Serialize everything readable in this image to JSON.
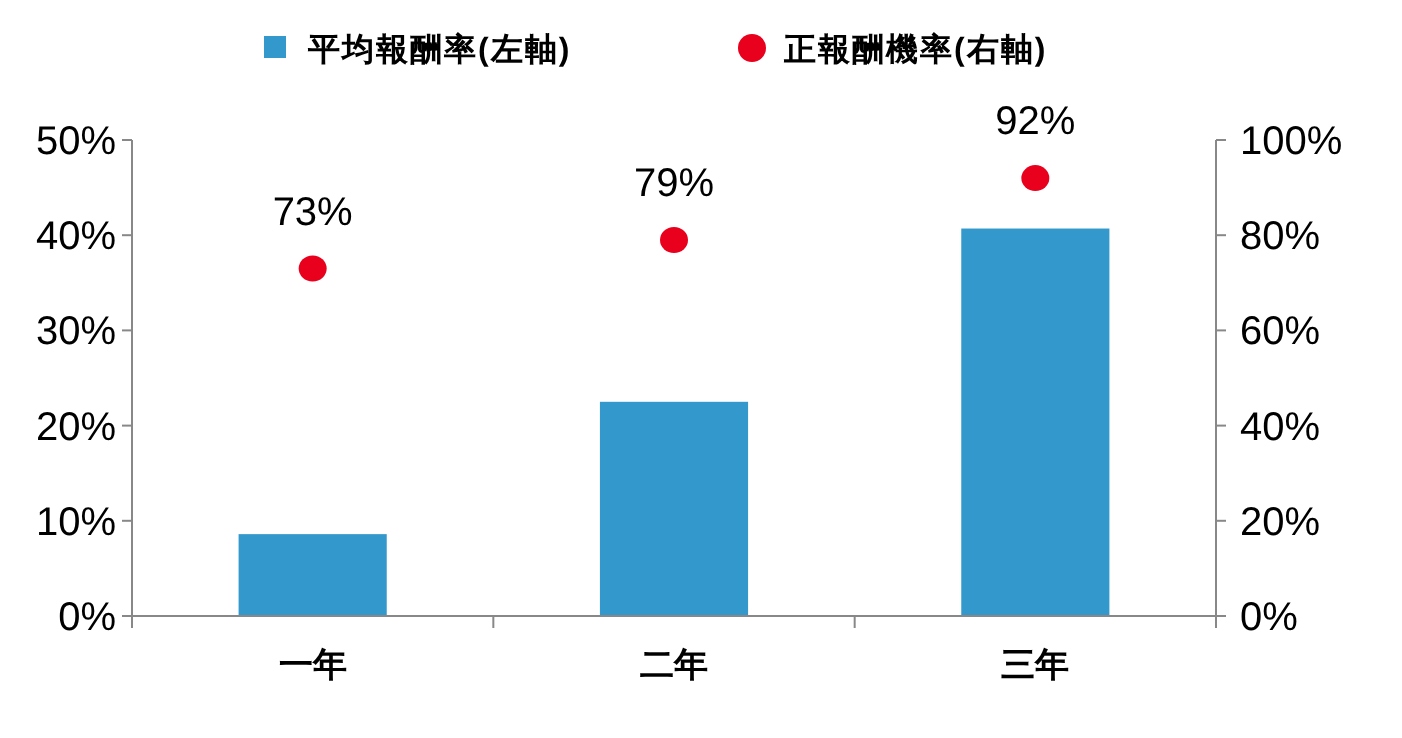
{
  "chart_data": {
    "type": "bar",
    "categories": [
      "一年",
      "二年",
      "三年"
    ],
    "series": [
      {
        "name": "平均報酬率(左軸)",
        "color": "#3399cc",
        "values": [
          8.6,
          22.5,
          40.7
        ]
      },
      {
        "name": "正報酬機率(右軸)",
        "type": "scatter",
        "axis": "y2",
        "color": "#e8001c",
        "values": [
          73,
          79,
          92
        ],
        "value_labels": [
          "73%",
          "79%",
          "92%"
        ]
      }
    ],
    "ylim": [
      0,
      50
    ],
    "yticks": [
      {
        "value": 0,
        "label": "0%"
      },
      {
        "value": 10,
        "label": "10%"
      },
      {
        "value": 20,
        "label": "20%"
      },
      {
        "value": 30,
        "label": "30%"
      },
      {
        "value": 40,
        "label": "40%"
      },
      {
        "value": 50,
        "label": "50%"
      }
    ],
    "y2lim": [
      0,
      100
    ],
    "y2ticks": [
      {
        "value": 0,
        "label": "0%"
      },
      {
        "value": 20,
        "label": "20%"
      },
      {
        "value": 40,
        "label": "40%"
      },
      {
        "value": 60,
        "label": "60%"
      },
      {
        "value": 80,
        "label": "80%"
      },
      {
        "value": 100,
        "label": "100%"
      }
    ],
    "marker": "circle",
    "legend": "top",
    "grid": false
  }
}
